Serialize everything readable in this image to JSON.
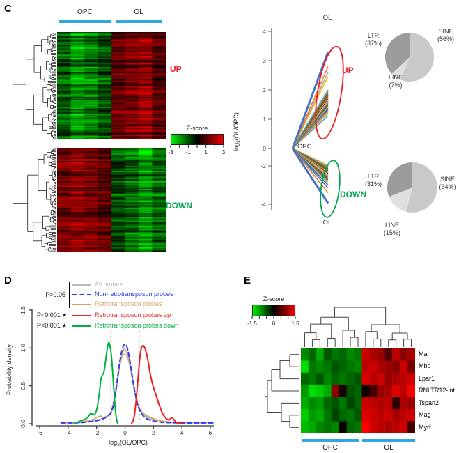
{
  "labels": {
    "c": "C",
    "d": "D",
    "e": "E"
  },
  "colors": {
    "group_bar": "#2fa8e1",
    "up": "#ed1c24",
    "down": "#00a651",
    "heat_pos": "#ff0000",
    "heat_neg": "#00ff00",
    "axis": "#777777",
    "pie_sine": "#c9c9c9",
    "pie_line": "#dfdfdf",
    "pie_ltr": "#9c9c9c"
  },
  "chart_data": {
    "c_up_heatmap": {
      "type": "heatmap",
      "description": "Hierarchically clustered probes upregulated in OL vs OPC: OPC columns low (green), OL columns high (red)",
      "col_groups": [
        "OPC",
        "OL"
      ],
      "cols_per_group": 4,
      "rows": 96,
      "col_means": [
        -1.2,
        -2.1,
        -1.6,
        -1.1,
        1.2,
        1.5,
        1.9,
        1.0
      ],
      "zlim": [
        -3,
        3
      ],
      "seed": 7,
      "annotation": "UP"
    },
    "c_down_heatmap": {
      "type": "heatmap",
      "description": "Hierarchically clustered probes downregulated in OL vs OPC: OPC columns high (red), OL columns low (green)",
      "col_groups": [
        "OPC",
        "OL"
      ],
      "cols_per_group": 4,
      "rows": 94,
      "col_means": [
        1.4,
        1.7,
        1.4,
        1.1,
        -1.0,
        -1.4,
        -2.0,
        -1.3
      ],
      "zlim": [
        -3,
        3
      ],
      "seed": 13,
      "annotation": "DOWN"
    },
    "c_colorbar": {
      "title": "Z-score",
      "ticks": [
        -3,
        -1,
        1,
        3
      ],
      "minor_ticks": [
        -2,
        0,
        2
      ],
      "range": [
        -3,
        3
      ]
    },
    "c_slope": {
      "type": "line",
      "ylabel_prefix": "log",
      "ylabel_sub": "2",
      "ylabel_suffix": "(OL/OPC)",
      "top_label": "OL",
      "origin_label": "OPC",
      "bottom_label": "OL",
      "up_annotation": "UP",
      "down_annotation": "DOWN",
      "yticks": [
        4,
        3,
        2,
        1,
        0,
        -2,
        -4
      ],
      "up_values": [
        3.3,
        2.8,
        2.6,
        2.45,
        2.0,
        1.95,
        1.9,
        1.85,
        1.82,
        1.78,
        1.75,
        1.7,
        1.66,
        1.62,
        1.58,
        1.54,
        1.5,
        1.46,
        1.42,
        1.38,
        1.34,
        1.3,
        1.25,
        1.2,
        1.12
      ],
      "down_values": [
        -1.95,
        -2.0,
        -2.05,
        -2.1,
        -2.15,
        -2.2,
        -2.25,
        -2.3,
        -2.35,
        -2.4,
        -2.45,
        -2.5,
        -2.58,
        -2.65,
        -2.72,
        -2.8,
        -2.9,
        -3.0,
        -3.15,
        -3.4,
        -3.95
      ],
      "palette": [
        "#4472C4",
        "#ED7D31",
        "#A5A5A5",
        "#FFC000",
        "#5B9BD5",
        "#70AD47",
        "#8B5A2B",
        "#9E480E",
        "#636363",
        "#997300",
        "#C9A96A",
        "#843C0C",
        "#B7B7B7",
        "#F1975A",
        "#698ED0",
        "#7F6000",
        "#548235",
        "#7B7B7B",
        "#D6B656",
        "#2E75B6"
      ]
    },
    "c_pie_up": {
      "type": "pie",
      "group": "UP",
      "slices": [
        {
          "label": "SINE",
          "pct": 56,
          "pct_text": "(56%)"
        },
        {
          "label": "LINE",
          "pct": 7,
          "pct_text": "(7%)"
        },
        {
          "label": "LTR",
          "pct": 37,
          "pct_text": "(37%)"
        }
      ]
    },
    "c_pie_down": {
      "type": "pie",
      "group": "DOWN",
      "slices": [
        {
          "label": "SINE",
          "pct": 54,
          "pct_text": "(54%)"
        },
        {
          "label": "LINE",
          "pct": 15,
          "pct_text": "(15%)"
        },
        {
          "label": "LTR",
          "pct": 31,
          "pct_text": "(31%)"
        }
      ]
    },
    "d_density": {
      "type": "line",
      "xlabel_prefix": "log",
      "xlabel_sub": "2",
      "xlabel_suffix": "(OL/OPC)",
      "ylabel": "Probability density",
      "xticks": [
        -6,
        -4,
        -2,
        0,
        2,
        4,
        6
      ],
      "ytick_values": [
        0,
        0.5,
        1,
        1.5
      ],
      "ytick_labels": [
        "0.0",
        "0.5",
        "1.0",
        "1.5"
      ],
      "xlim": [
        -6.5,
        6.5
      ],
      "ylim": [
        0,
        1.55
      ],
      "ref_lines": [
        -1,
        1
      ],
      "p_nonsig": "P>0.05",
      "p_sig_up": "P<0.001",
      "p_sig_down": "P<0.001",
      "star": "★",
      "series": [
        {
          "name": "All probes",
          "color": "#bdbdbd",
          "dash": false,
          "points": [
            [
              -4.5,
              0.01
            ],
            [
              -4,
              0.012
            ],
            [
              -3.5,
              0.015
            ],
            [
              -3,
              0.02
            ],
            [
              -2.5,
              0.03
            ],
            [
              -2,
              0.05
            ],
            [
              -1.6,
              0.07
            ],
            [
              -1.3,
              0.1
            ],
            [
              -1,
              0.16
            ],
            [
              -0.8,
              0.3
            ],
            [
              -0.6,
              0.52
            ],
            [
              -0.4,
              0.74
            ],
            [
              -0.2,
              0.88
            ],
            [
              0,
              0.92
            ],
            [
              0.2,
              0.86
            ],
            [
              0.4,
              0.7
            ],
            [
              0.6,
              0.5
            ],
            [
              0.8,
              0.33
            ],
            [
              1,
              0.21
            ],
            [
              1.3,
              0.12
            ],
            [
              1.6,
              0.08
            ],
            [
              2,
              0.05
            ],
            [
              2.5,
              0.035
            ],
            [
              3,
              0.025
            ],
            [
              3.5,
              0.02
            ],
            [
              4,
              0.015
            ],
            [
              5,
              0.01
            ],
            [
              6.2,
              0.01
            ]
          ]
        },
        {
          "name": "Non-retrotransposon probes",
          "color": "#2b3aee",
          "dash": true,
          "points": [
            [
              -4.5,
              0.01
            ],
            [
              -4,
              0.01
            ],
            [
              -3.5,
              0.012
            ],
            [
              -3,
              0.016
            ],
            [
              -2.5,
              0.025
            ],
            [
              -2,
              0.04
            ],
            [
              -1.6,
              0.06
            ],
            [
              -1.3,
              0.09
            ],
            [
              -1,
              0.14
            ],
            [
              -0.8,
              0.27
            ],
            [
              -0.6,
              0.5
            ],
            [
              -0.4,
              0.78
            ],
            [
              -0.2,
              0.98
            ],
            [
              0,
              1.05
            ],
            [
              0.2,
              0.97
            ],
            [
              0.4,
              0.76
            ],
            [
              0.6,
              0.52
            ],
            [
              0.8,
              0.32
            ],
            [
              1,
              0.19
            ],
            [
              1.3,
              0.1
            ],
            [
              1.6,
              0.06
            ],
            [
              2,
              0.035
            ],
            [
              2.5,
              0.02
            ],
            [
              3,
              0.015
            ],
            [
              4,
              0.01
            ],
            [
              5,
              0.01
            ],
            [
              6.2,
              0.01
            ]
          ]
        },
        {
          "name": "Retrotransposon probes",
          "color": "#d6a566",
          "dash": false,
          "points": [
            [
              -4.2,
              0.01
            ],
            [
              -3.6,
              0.015
            ],
            [
              -3,
              0.03
            ],
            [
              -2.6,
              0.04
            ],
            [
              -2.2,
              0.06
            ],
            [
              -1.9,
              0.09
            ],
            [
              -1.7,
              0.1
            ],
            [
              -1.5,
              0.08
            ],
            [
              -1.3,
              0.09
            ],
            [
              -1.1,
              0.12
            ],
            [
              -0.9,
              0.18
            ],
            [
              -0.7,
              0.35
            ],
            [
              -0.5,
              0.6
            ],
            [
              -0.3,
              0.85
            ],
            [
              -0.1,
              0.97
            ],
            [
              0,
              0.98
            ],
            [
              0.2,
              0.9
            ],
            [
              0.4,
              0.72
            ],
            [
              0.6,
              0.5
            ],
            [
              0.8,
              0.33
            ],
            [
              1,
              0.22
            ],
            [
              1.2,
              0.15
            ],
            [
              1.5,
              0.11
            ],
            [
              1.8,
              0.08
            ],
            [
              2.1,
              0.06
            ],
            [
              2.5,
              0.04
            ],
            [
              3,
              0.025
            ],
            [
              3.5,
              0.015
            ],
            [
              4,
              0.01
            ]
          ]
        },
        {
          "name": "Retrotransposon probes up",
          "color": "#f11c1c",
          "dash": false,
          "points": [
            [
              0.45,
              0.0
            ],
            [
              0.55,
              0.03
            ],
            [
              0.65,
              0.1
            ],
            [
              0.75,
              0.25
            ],
            [
              0.85,
              0.45
            ],
            [
              0.95,
              0.68
            ],
            [
              1.05,
              0.88
            ],
            [
              1.15,
              1.0
            ],
            [
              1.3,
              1.03
            ],
            [
              1.45,
              0.97
            ],
            [
              1.6,
              0.85
            ],
            [
              1.75,
              0.68
            ],
            [
              1.9,
              0.55
            ],
            [
              2.05,
              0.45
            ],
            [
              2.2,
              0.37
            ],
            [
              2.35,
              0.28
            ],
            [
              2.5,
              0.2
            ],
            [
              2.65,
              0.13
            ],
            [
              2.8,
              0.09
            ],
            [
              2.95,
              0.06
            ],
            [
              3.1,
              0.05
            ],
            [
              3.3,
              0.08
            ],
            [
              3.45,
              0.05
            ],
            [
              3.6,
              0.02
            ],
            [
              3.8,
              0.008
            ],
            [
              4.1,
              0.0
            ]
          ]
        },
        {
          "name": "Retrotransposon probes down",
          "color": "#00b140",
          "dash": false,
          "points": [
            [
              -3.6,
              0.0
            ],
            [
              -3.4,
              0.015
            ],
            [
              -3.2,
              0.03
            ],
            [
              -3.0,
              0.045
            ],
            [
              -2.8,
              0.06
            ],
            [
              -2.6,
              0.09
            ],
            [
              -2.45,
              0.13
            ],
            [
              -2.3,
              0.13
            ],
            [
              -2.15,
              0.12
            ],
            [
              -2.0,
              0.18
            ],
            [
              -1.9,
              0.28
            ],
            [
              -1.8,
              0.42
            ],
            [
              -1.7,
              0.58
            ],
            [
              -1.6,
              0.64
            ],
            [
              -1.5,
              0.67
            ],
            [
              -1.4,
              0.78
            ],
            [
              -1.3,
              0.93
            ],
            [
              -1.2,
              1.04
            ],
            [
              -1.13,
              1.07
            ],
            [
              -1.05,
              1.02
            ],
            [
              -0.95,
              0.88
            ],
            [
              -0.85,
              0.62
            ],
            [
              -0.75,
              0.35
            ],
            [
              -0.68,
              0.18
            ],
            [
              -0.62,
              0.08
            ],
            [
              -0.55,
              0.02
            ],
            [
              -0.5,
              0.0
            ]
          ]
        }
      ]
    },
    "e_heatmap": {
      "type": "heatmap",
      "colorbar": {
        "title": "Z-score",
        "ticks": [
          -1.5,
          0,
          1.5
        ],
        "minor_ticks": [
          -1,
          -0.5,
          0.5,
          1
        ],
        "range": [
          -1.5,
          1.5
        ]
      },
      "rows": [
        "Mal",
        "Mbp",
        "Lpar1",
        "RNLTR12-int",
        "Tspan2",
        "Mag",
        "Myrf"
      ],
      "col_group_labels": [
        "OPC",
        "OL"
      ],
      "cols_per_group": [
        8,
        7
      ],
      "values": [
        [
          -0.8,
          -0.6,
          -1.0,
          -0.5,
          -0.7,
          -0.6,
          -0.8,
          -0.7,
          1.2,
          1.0,
          0.9,
          0.5,
          1.1,
          0.8,
          1.0
        ],
        [
          -1.3,
          -0.7,
          -0.8,
          -0.7,
          -0.5,
          -0.6,
          -0.7,
          -0.8,
          1.1,
          1.2,
          1.0,
          0.9,
          0.8,
          1.2,
          0.7
        ],
        [
          -0.6,
          -0.7,
          -0.5,
          -0.8,
          -0.6,
          -0.7,
          -0.6,
          -0.5,
          1.3,
          1.1,
          1.2,
          0.9,
          1.0,
          1.1,
          1.2
        ],
        [
          -0.9,
          -1.3,
          -1.2,
          -1.0,
          0.8,
          0.15,
          -0.5,
          -0.6,
          0.1,
          0.4,
          0.9,
          1.0,
          1.3,
          1.1,
          1.45
        ],
        [
          -1.0,
          -0.8,
          -0.9,
          -0.6,
          -0.5,
          -0.7,
          -0.4,
          -0.6,
          1.2,
          1.1,
          1.0,
          1.1,
          0.25,
          1.0,
          0.9
        ],
        [
          -1.2,
          -0.9,
          -1.0,
          -0.7,
          -0.4,
          -0.6,
          -0.7,
          -0.5,
          1.3,
          1.2,
          1.1,
          1.2,
          1.0,
          1.1,
          1.2
        ],
        [
          -1.1,
          -1.0,
          -0.8,
          -0.7,
          -0.8,
          0.05,
          -0.6,
          -0.7,
          1.5,
          1.2,
          1.1,
          1.0,
          1.1,
          1.2,
          0.35
        ]
      ]
    }
  }
}
